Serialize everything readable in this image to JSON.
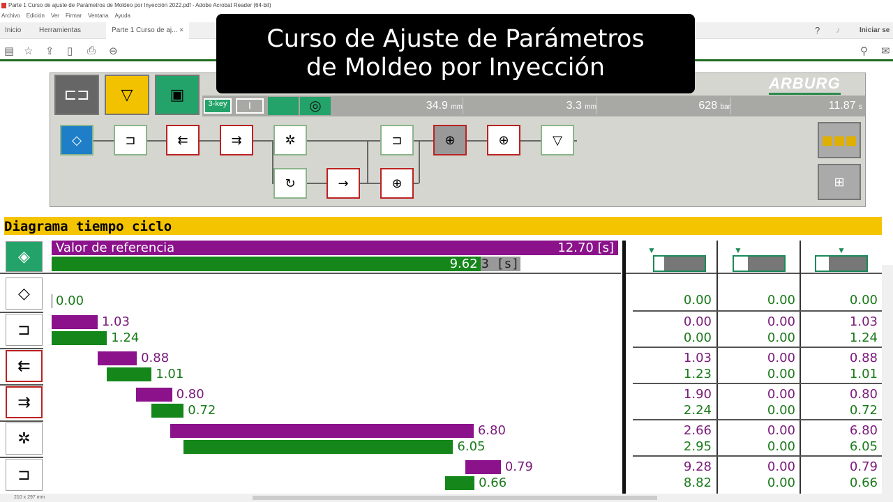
{
  "window": {
    "title": "Parte 1 Curso de ajuste de Parámetros de Moldeo por Inyección 2022.pdf - Adobe Acrobat Reader (64-bit)"
  },
  "menu": [
    "Archivo",
    "Edición",
    "Ver",
    "Firmar",
    "Ventana",
    "Ayuda"
  ],
  "tabs": {
    "home": "Inicio",
    "tools": "Herramientas",
    "document": "Parte 1 Curso de aj...",
    "close": "×",
    "signin": "Iniciar se"
  },
  "overlay": {
    "line1": "Curso de Ajuste de Parámetros",
    "line2": "de Moldeo por Inyección"
  },
  "hmi": {
    "brand": "ARBURG",
    "gauges": [
      {
        "value": "34.9",
        "unit": "mm"
      },
      {
        "value": "3.3",
        "unit": "mm"
      },
      {
        "value": "628",
        "unit": "bar"
      },
      {
        "value": "11.87",
        "unit": "s"
      }
    ],
    "status_icons": [
      "3-key",
      "I"
    ]
  },
  "diagram": {
    "title": "Diagrama tiempo ciclo",
    "reference_label": "Valor de referencia",
    "reference_value": "12.70 [s]",
    "actual_value": "9.62",
    "actual_suffix": "3 [s]",
    "colors": {
      "reference": "#8b128b",
      "actual": "#15861a"
    },
    "axis_max": 12.7,
    "actual_fraction": 0.757,
    "rows": [
      {
        "icon": "start-icon",
        "start_label": "0.00",
        "col1": [
          "0.00"
        ],
        "col2": [
          "0.00"
        ],
        "col3": [
          "0.00"
        ]
      },
      {
        "icon": "mold-close-icon",
        "ref": {
          "start": 0,
          "dur": 1.03,
          "label": "1.03"
        },
        "act": {
          "start": 0,
          "dur": 1.24,
          "label": "1.24"
        },
        "col1": [
          "0.00",
          "0.00"
        ],
        "col2": [
          "0.00",
          "0.00"
        ],
        "col3": [
          "1.03",
          "1.24"
        ]
      },
      {
        "icon": "injection-icon",
        "ref": {
          "start": 1.03,
          "dur": 0.88,
          "label": "0.88"
        },
        "act": {
          "start": 1.23,
          "dur": 1.01,
          "label": "1.01"
        },
        "col1": [
          "1.03",
          "1.23"
        ],
        "col2": [
          "0.00",
          "0.00"
        ],
        "col3": [
          "0.88",
          "1.01"
        ]
      },
      {
        "icon": "holding-pressure-icon",
        "ref": {
          "start": 1.9,
          "dur": 0.8,
          "label": "0.80"
        },
        "act": {
          "start": 2.24,
          "dur": 0.72,
          "label": "0.72"
        },
        "col1": [
          "1.90",
          "2.24"
        ],
        "col2": [
          "0.00",
          "0.00"
        ],
        "col3": [
          "0.80",
          "0.72"
        ]
      },
      {
        "icon": "cooling-icon",
        "ref": {
          "start": 2.66,
          "dur": 6.8,
          "label": "6.80"
        },
        "act": {
          "start": 2.95,
          "dur": 6.05,
          "label": "6.05"
        },
        "col1": [
          "2.66",
          "2.95"
        ],
        "col2": [
          "0.00",
          "0.00"
        ],
        "col3": [
          "6.80",
          "6.05"
        ]
      },
      {
        "icon": "mold-open-icon",
        "ref": {
          "start": 9.28,
          "dur": 0.79,
          "label": "0.79"
        },
        "act": {
          "start": 8.82,
          "dur": 0.66,
          "label": "0.66"
        },
        "col1": [
          "9.28",
          "8.82"
        ],
        "col2": [
          "0.00",
          "0.00"
        ],
        "col3": [
          "0.79",
          "0.66"
        ]
      }
    ]
  },
  "statusbar": {
    "page_size": "210 x 297 mm"
  }
}
